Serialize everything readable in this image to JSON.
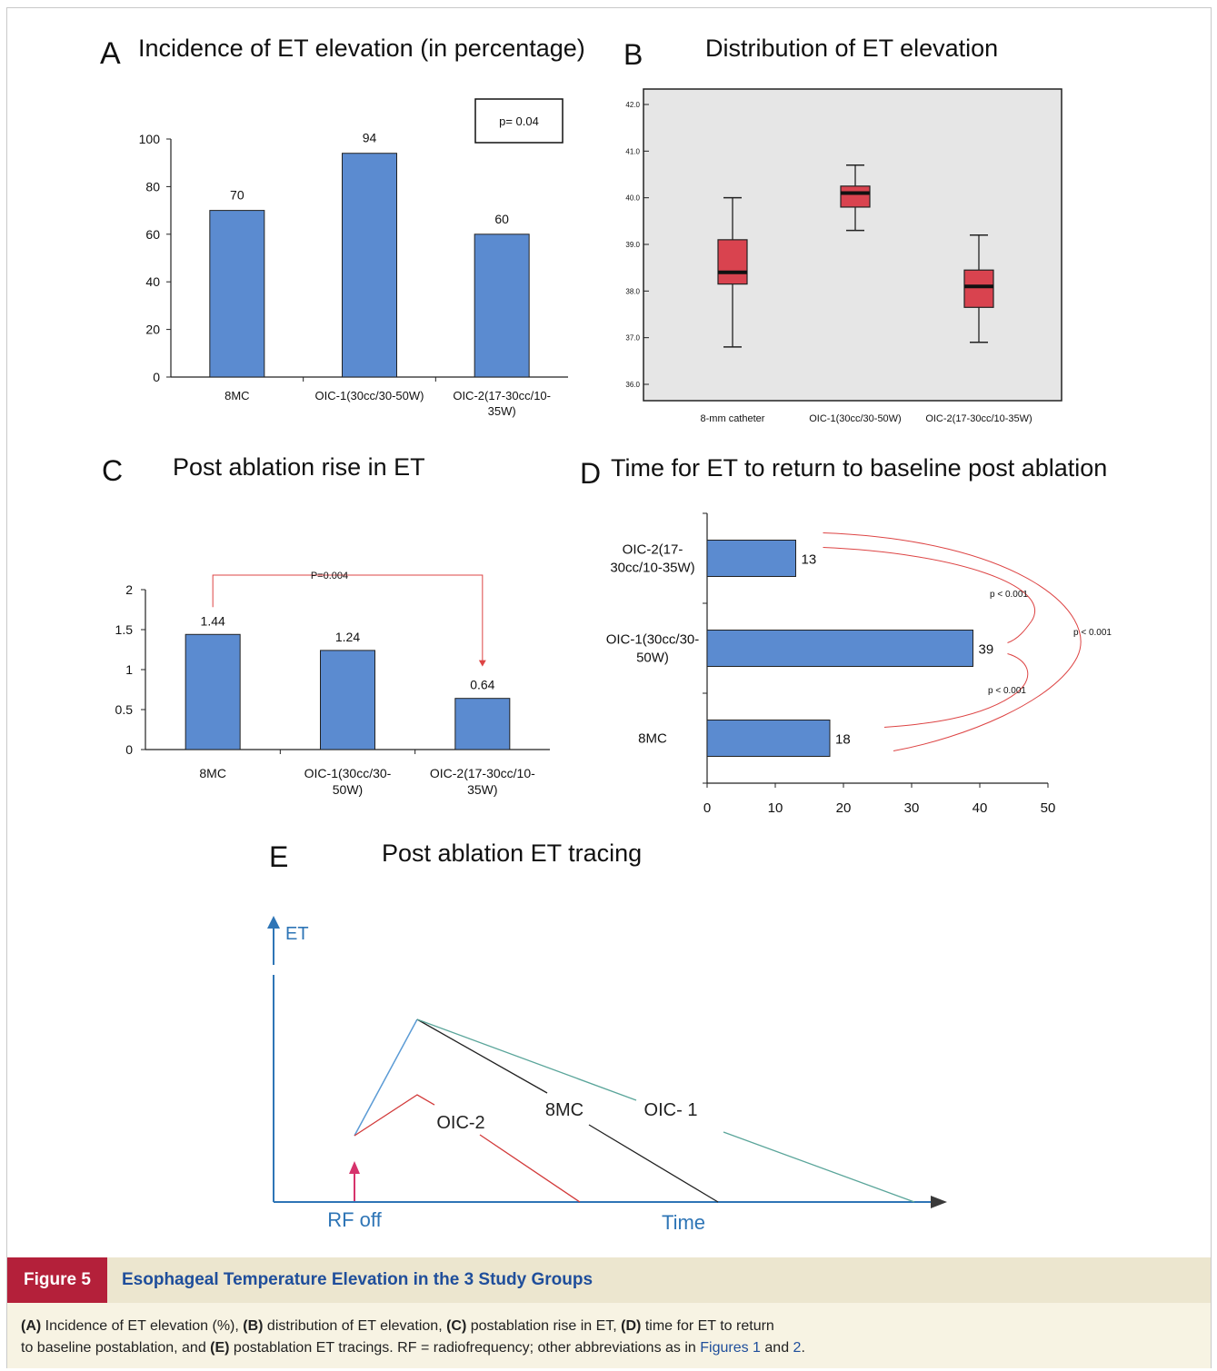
{
  "panels": {
    "a": {
      "letter": "A",
      "title": "Incidence of ET elevation (in percentage)"
    },
    "b": {
      "letter": "B",
      "title": "Distribution of ET elevation"
    },
    "c": {
      "letter": "C",
      "title": "Post ablation rise in ET"
    },
    "d": {
      "letter": "D",
      "title": "Time for ET to return to baseline post ablation"
    },
    "e": {
      "letter": "E",
      "title": "Post ablation ET tracing"
    }
  },
  "chart_data": [
    {
      "panel": "A",
      "type": "bar",
      "title": "Incidence of ET elevation (in percentage)",
      "categories": [
        "8MC",
        "OIC-1(30cc/30-50W)",
        "OIC-2(17-30cc/10-35W)"
      ],
      "category_lines": [
        [
          "8MC"
        ],
        [
          "OIC-1(30cc/30-50W)"
        ],
        [
          "OIC-2(17-30cc/10-",
          "35W)"
        ]
      ],
      "values": [
        70,
        94,
        60
      ],
      "data_labels": [
        "70",
        "94",
        "60"
      ],
      "ylim": [
        0,
        100
      ],
      "yticks": [
        "0",
        "20",
        "40",
        "60",
        "80",
        "100"
      ],
      "annotation": "p= 0.04",
      "bar_color": "#5b8bd0",
      "grid": false
    },
    {
      "panel": "B",
      "type": "box",
      "title": "Distribution of ET elevation",
      "categories": [
        "8-mm catheter",
        "OIC-1(30cc/30-50W)",
        "OIC-2(17-30cc/10-35W)"
      ],
      "boxes": [
        {
          "min": 36.8,
          "q1": 38.15,
          "median": 38.4,
          "q3": 39.1,
          "max": 40.0
        },
        {
          "min": 39.3,
          "q1": 39.8,
          "median": 40.1,
          "q3": 40.25,
          "max": 40.7
        },
        {
          "min": 36.9,
          "q1": 37.65,
          "median": 38.1,
          "q3": 38.45,
          "max": 39.2
        }
      ],
      "ylim": [
        36.0,
        42.0
      ],
      "yticks": [
        "36.0",
        "37.0",
        "38.0",
        "39.0",
        "40.0",
        "41.0",
        "42.0"
      ],
      "box_color": "#d9434f",
      "plot_background": "#e6e6e6"
    },
    {
      "panel": "C",
      "type": "bar",
      "title": "Post ablation rise in ET",
      "categories": [
        "8MC",
        "OIC-1(30cc/30-50W)",
        "OIC-2(17-30cc/10-35W)"
      ],
      "category_lines": [
        [
          "8MC"
        ],
        [
          "OIC-1(30cc/30-",
          "50W)"
        ],
        [
          "OIC-2(17-30cc/10-",
          "35W)"
        ]
      ],
      "values": [
        1.44,
        1.24,
        0.64
      ],
      "data_labels": [
        "1.44",
        "1.24",
        "0.64"
      ],
      "ylim": [
        0,
        2
      ],
      "yticks": [
        "0",
        "0.5",
        "1",
        "1.5",
        "2"
      ],
      "annotation": "P=0.004",
      "bar_color": "#5b8bd0"
    },
    {
      "panel": "D",
      "type": "bar",
      "orientation": "horizontal",
      "title": "Time for ET to return to baseline post ablation",
      "categories": [
        "OIC-2(17-30cc/10-35W)",
        "OIC-1(30cc/30-50W)",
        "8MC"
      ],
      "category_lines": [
        [
          "OIC-2(17-",
          "30cc/10-35W)"
        ],
        [
          "OIC-1(30cc/30-",
          "50W)"
        ],
        [
          "8MC"
        ]
      ],
      "values": [
        13,
        39,
        18
      ],
      "data_labels": [
        "13",
        "39",
        "18"
      ],
      "xlim": [
        0,
        50
      ],
      "xticks": [
        "0",
        "10",
        "20",
        "30",
        "40",
        "50"
      ],
      "annotations": [
        "p < 0.001",
        "p < 0.001",
        "p < 0.001"
      ],
      "bar_color": "#5b8bd0"
    },
    {
      "panel": "E",
      "type": "line",
      "schematic": true,
      "title": "Post ablation ET tracing",
      "xlabel": "Time",
      "ylabel": "ET",
      "marker_label": "RF off",
      "series": [
        {
          "name": "8MC",
          "color": "#222222"
        },
        {
          "name": "OIC- 1",
          "color": "#5aa59a"
        },
        {
          "name": "OIC-2",
          "color": "#d23a3a"
        }
      ],
      "rise_color": "#5b9bd5",
      "axis_color": "#2e75b6",
      "marker_color": "#d6336c"
    }
  ],
  "caption": {
    "figure_label": "Figure 5",
    "figure_title": "Esophageal Temperature Elevation in the 3 Study Groups",
    "line1": [
      {
        "b": "(A)"
      },
      {
        "t": " Incidence of ET elevation (%), "
      },
      {
        "b": "(B)"
      },
      {
        "t": " distribution of ET elevation, "
      },
      {
        "b": "(C)"
      },
      {
        "t": " postablation rise in ET, "
      },
      {
        "b": "(D)"
      },
      {
        "t": " time for ET to return"
      }
    ],
    "line2": [
      {
        "t": "to baseline postablation, and "
      },
      {
        "b": "(E)"
      },
      {
        "t": " postablation ET tracings. RF = radiofrequency; other abbreviations as in "
      },
      {
        "l": "Figures 1"
      },
      {
        "t": " and "
      },
      {
        "l": "2"
      },
      {
        "t": "."
      }
    ]
  }
}
